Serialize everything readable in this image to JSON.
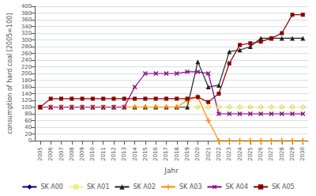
{
  "chart_data": {
    "type": "line",
    "xlabel": "Jahr",
    "ylabel": "consumption of hard coal [2005=100]",
    "x": [
      2005,
      2006,
      2007,
      2008,
      2009,
      2010,
      2011,
      2012,
      2013,
      2014,
      2015,
      2016,
      2017,
      2018,
      2019,
      2020,
      2021,
      2022,
      2023,
      2024,
      2025,
      2026,
      2027,
      2028,
      2029,
      2030
    ],
    "series": [
      {
        "name": "SK A00",
        "color": "#000080",
        "marker": "diamond",
        "values": [
          100,
          100,
          100,
          100,
          100,
          100,
          100,
          100,
          100,
          100,
          100,
          100,
          100,
          100,
          100,
          100,
          100,
          100,
          100,
          100,
          100,
          100,
          100,
          100,
          100,
          100
        ]
      },
      {
        "name": "SK A01",
        "color": "#EEEE88",
        "marker": "square",
        "values": [
          100,
          100,
          100,
          100,
          100,
          100,
          100,
          100,
          100,
          100,
          100,
          100,
          100,
          100,
          100,
          100,
          100,
          100,
          100,
          100,
          100,
          100,
          100,
          100,
          100,
          100
        ]
      },
      {
        "name": "SK A02",
        "color": "#222222",
        "marker": "triangle",
        "values": [
          100,
          100,
          100,
          100,
          100,
          100,
          100,
          100,
          100,
          100,
          100,
          100,
          100,
          100,
          100,
          235,
          160,
          165,
          265,
          270,
          280,
          305,
          305,
          305,
          305,
          305
        ]
      },
      {
        "name": "SK A03",
        "color": "#FF8C00",
        "marker": "plus",
        "values": [
          100,
          100,
          100,
          100,
          100,
          100,
          100,
          100,
          100,
          100,
          100,
          100,
          100,
          100,
          120,
          130,
          60,
          0,
          0,
          0,
          0,
          0,
          0,
          0,
          0,
          0
        ]
      },
      {
        "name": "SK A04",
        "color": "#880088",
        "marker": "cross",
        "values": [
          100,
          100,
          100,
          100,
          100,
          100,
          100,
          100,
          100,
          160,
          200,
          200,
          200,
          200,
          205,
          205,
          200,
          80,
          80,
          80,
          80,
          80,
          80,
          80,
          80,
          80
        ]
      },
      {
        "name": "SK A05",
        "color": "#8B0000",
        "marker": "square",
        "values": [
          100,
          125,
          125,
          125,
          125,
          125,
          125,
          125,
          125,
          125,
          125,
          125,
          125,
          125,
          125,
          130,
          115,
          140,
          230,
          285,
          290,
          295,
          305,
          320,
          375,
          375
        ]
      }
    ],
    "xlim": [
      2004.5,
      2030.5
    ],
    "xticks": [
      2005,
      2006,
      2007,
      2008,
      2009,
      2010,
      2011,
      2012,
      2013,
      2014,
      2015,
      2016,
      2017,
      2018,
      2019,
      2020,
      2021,
      2022,
      2023,
      2024,
      2025,
      2026,
      2027,
      2028,
      2029,
      2030
    ],
    "ylim": [
      0,
      400
    ],
    "yticks": [
      0,
      20,
      40,
      60,
      80,
      100,
      120,
      140,
      160,
      180,
      200,
      220,
      240,
      260,
      280,
      300,
      320,
      340,
      360,
      380,
      400
    ],
    "grid": true,
    "legend": "bottom"
  }
}
